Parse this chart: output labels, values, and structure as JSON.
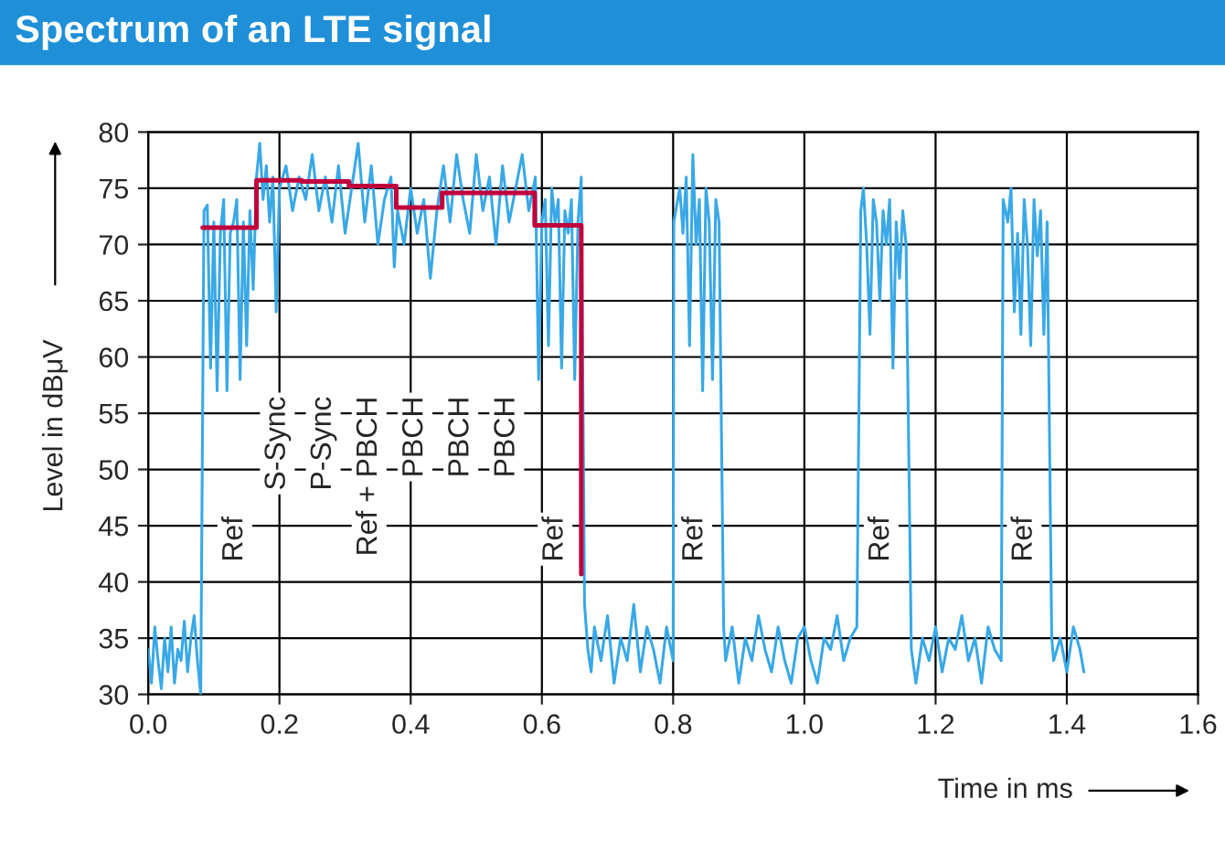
{
  "chart_data": {
    "type": "line",
    "title": "Spectrum of an LTE signal",
    "xlabel": "Time in ms",
    "ylabel": "Level in dBμV",
    "xlim": [
      0,
      1.6
    ],
    "ylim": [
      30,
      80
    ],
    "xticks": [
      {
        "value": 0,
        "label": "0.0"
      },
      {
        "value": 0.2,
        "label": "0.2"
      },
      {
        "value": 0.4,
        "label": "0.4"
      },
      {
        "value": 0.6,
        "label": "0.6"
      },
      {
        "value": 0.8,
        "label": "0.8"
      },
      {
        "value": 1.0,
        "label": "1.0"
      },
      {
        "value": 1.2,
        "label": "1.2"
      },
      {
        "value": 1.4,
        "label": "1.4"
      },
      {
        "value": 1.6,
        "label": "1.6"
      }
    ],
    "yticks": [
      30,
      35,
      40,
      45,
      50,
      55,
      60,
      65,
      70,
      75,
      80
    ],
    "grid": true,
    "legend": false,
    "series": [
      {
        "color": "#3aa8e6",
        "x": [
          0.0,
          0.005,
          0.01,
          0.015,
          0.02,
          0.025,
          0.03,
          0.035,
          0.04,
          0.045,
          0.05,
          0.055,
          0.06,
          0.065,
          0.07,
          0.075,
          0.08,
          0.085,
          0.09,
          0.095,
          0.1,
          0.105,
          0.11,
          0.115,
          0.12,
          0.125,
          0.13,
          0.135,
          0.14,
          0.145,
          0.15,
          0.155,
          0.16,
          0.165,
          0.17,
          0.175,
          0.18,
          0.185,
          0.19,
          0.195,
          0.2,
          0.21,
          0.22,
          0.23,
          0.24,
          0.25,
          0.26,
          0.27,
          0.28,
          0.29,
          0.3,
          0.31,
          0.32,
          0.33,
          0.34,
          0.35,
          0.36,
          0.37,
          0.375,
          0.38,
          0.39,
          0.4,
          0.41,
          0.42,
          0.43,
          0.44,
          0.45,
          0.46,
          0.47,
          0.48,
          0.49,
          0.5,
          0.51,
          0.52,
          0.53,
          0.54,
          0.55,
          0.56,
          0.57,
          0.58,
          0.59,
          0.595,
          0.6,
          0.605,
          0.61,
          0.615,
          0.62,
          0.625,
          0.63,
          0.635,
          0.64,
          0.645,
          0.65,
          0.655,
          0.66,
          0.665,
          0.67,
          0.675,
          0.68,
          0.69,
          0.7,
          0.71,
          0.72,
          0.73,
          0.74,
          0.75,
          0.76,
          0.77,
          0.78,
          0.79,
          0.8,
          0.801,
          0.81,
          0.815,
          0.82,
          0.825,
          0.83,
          0.835,
          0.84,
          0.845,
          0.85,
          0.855,
          0.86,
          0.865,
          0.87,
          0.877,
          0.88,
          0.89,
          0.9,
          0.91,
          0.92,
          0.93,
          0.94,
          0.95,
          0.96,
          0.97,
          0.98,
          0.99,
          1.0,
          1.01,
          1.02,
          1.03,
          1.04,
          1.05,
          1.06,
          1.07,
          1.08,
          1.086,
          1.09,
          1.095,
          1.1,
          1.105,
          1.11,
          1.115,
          1.12,
          1.125,
          1.13,
          1.135,
          1.14,
          1.145,
          1.15,
          1.155,
          1.163,
          1.17,
          1.18,
          1.19,
          1.2,
          1.21,
          1.22,
          1.23,
          1.24,
          1.25,
          1.26,
          1.27,
          1.28,
          1.29,
          1.3,
          1.303,
          1.31,
          1.315,
          1.32,
          1.325,
          1.33,
          1.335,
          1.34,
          1.345,
          1.35,
          1.355,
          1.36,
          1.365,
          1.37,
          1.377,
          1.38,
          1.39,
          1.4,
          1.41,
          1.42,
          1.426
        ],
        "values": [
          34,
          31,
          36,
          33,
          30.5,
          35,
          32,
          36,
          31,
          34,
          33,
          36.5,
          32,
          35,
          37,
          33,
          30,
          73,
          73.5,
          59,
          72,
          57,
          71,
          74,
          57,
          71,
          72,
          74,
          58,
          72,
          61,
          73,
          66,
          76,
          79,
          74,
          77,
          72,
          76,
          64,
          75,
          77,
          73,
          76,
          74,
          78,
          73,
          76,
          72,
          77,
          71,
          75,
          79,
          72,
          77,
          70,
          74,
          76,
          68,
          73,
          70,
          75,
          71,
          74,
          67,
          73,
          77,
          72,
          78,
          74,
          71,
          78,
          73,
          76,
          70,
          77,
          72,
          75,
          78,
          73,
          76,
          58,
          72,
          74,
          61,
          75,
          72,
          74,
          59,
          73,
          71,
          74,
          58,
          72,
          76,
          38,
          34,
          32,
          36,
          33,
          37,
          31,
          35,
          33,
          38,
          32,
          36,
          34,
          31,
          36,
          33,
          72,
          75,
          71,
          76,
          61,
          78,
          70,
          74,
          57,
          75,
          72,
          58,
          74,
          72,
          36,
          33,
          36,
          31,
          35,
          33,
          37,
          34,
          32,
          36,
          33,
          31,
          35,
          36,
          33,
          31,
          35,
          34,
          37,
          33,
          35,
          36,
          73,
          75,
          70,
          62,
          74,
          72,
          65,
          73,
          70,
          74,
          59,
          72,
          67,
          73,
          70,
          34,
          31,
          35,
          33,
          36,
          32,
          35,
          34,
          37,
          33,
          35,
          31,
          36,
          34,
          33,
          74,
          72,
          75,
          64,
          71,
          62,
          74,
          70,
          61,
          74,
          69,
          73,
          62,
          72,
          35,
          33,
          35,
          32,
          36,
          34,
          32
        ]
      },
      {
        "type": "step",
        "color": "#c0003c",
        "x": [
          0.083,
          0.165,
          0.234,
          0.306,
          0.378,
          0.448,
          0.589,
          0.66
        ],
        "values": [
          71.5,
          75.7,
          75.6,
          75.2,
          73.3,
          74.6,
          71.7,
          40.7
        ]
      }
    ],
    "annotations": [
      {
        "text": "Ref",
        "x": 0.132,
        "y": 43.8
      },
      "S-Sync",
      "P-Sync",
      "Ref + PBCH",
      "PBCH",
      "PBCH",
      "PBCH",
      {
        "text": "Ref",
        "x": 0.62,
        "y": 43.8
      },
      {
        "text": "Ref",
        "x": 0.833,
        "y": 43.8
      },
      {
        "text": "Ref",
        "x": 1.117,
        "y": 43.8
      },
      {
        "text": "Ref",
        "x": 1.335,
        "y": 43.8
      }
    ]
  }
}
